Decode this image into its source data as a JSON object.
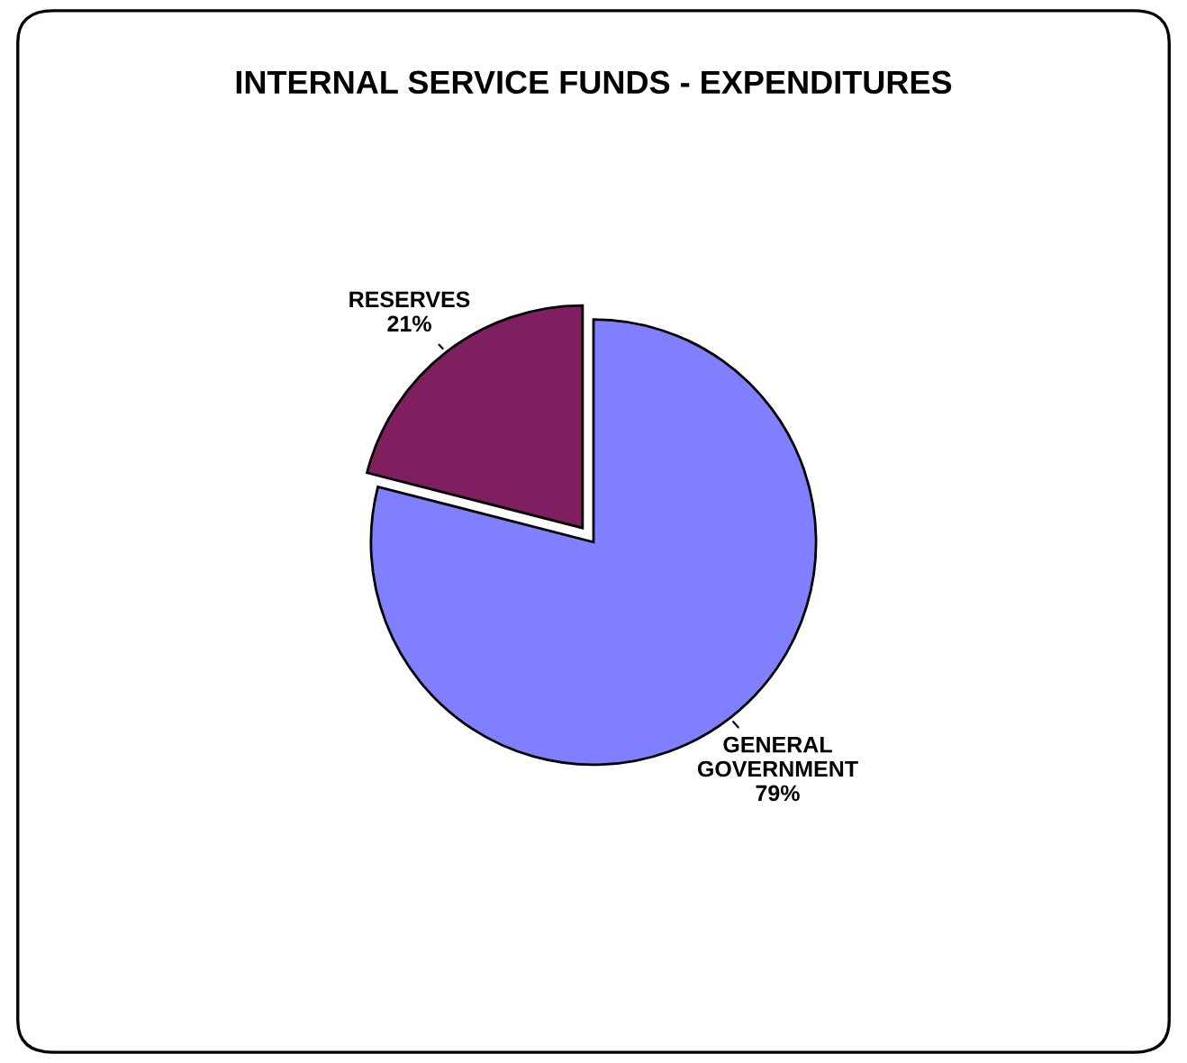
{
  "chart_data": {
    "type": "pie",
    "title": "INTERNAL SERVICE FUNDS - EXPENDITURES",
    "categories": [
      "RESERVES",
      "GENERAL GOVERNMENT"
    ],
    "values": [
      21,
      79
    ],
    "value_labels": [
      "21%",
      "79%"
    ],
    "colors": [
      "#7f1f5f",
      "#8080ff"
    ]
  }
}
